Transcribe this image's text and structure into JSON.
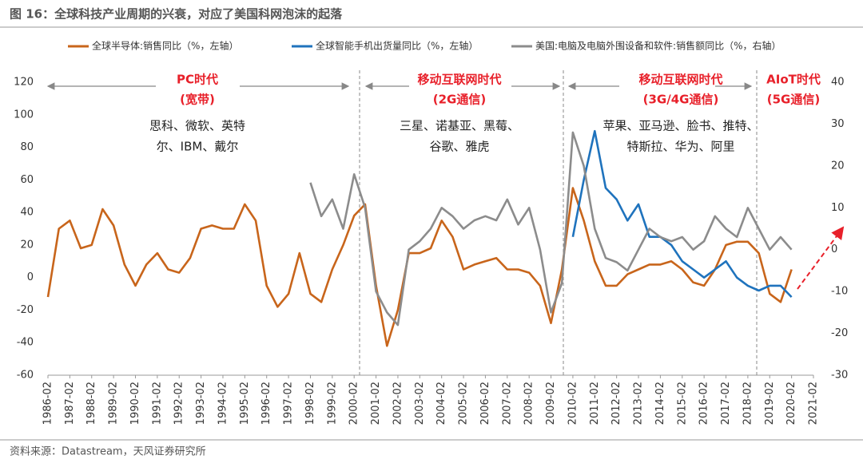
{
  "chart_data": {
    "type": "line",
    "title": "图 16：全球科技产业周期的兴衰，对应了美国科网泡沫的起落",
    "source": "资料来源：Datastream，天风证券研究所",
    "x": [
      "1986-02",
      "1986-08",
      "1987-02",
      "1987-08",
      "1988-02",
      "1988-08",
      "1989-02",
      "1989-08",
      "1990-02",
      "1990-08",
      "1991-02",
      "1991-08",
      "1992-02",
      "1992-08",
      "1993-02",
      "1993-08",
      "1994-02",
      "1994-08",
      "1995-02",
      "1995-08",
      "1996-02",
      "1996-08",
      "1997-02",
      "1997-08",
      "1998-02",
      "1998-08",
      "1999-02",
      "1999-08",
      "2000-02",
      "2000-08",
      "2001-02",
      "2001-08",
      "2002-02",
      "2002-08",
      "2003-02",
      "2003-08",
      "2004-02",
      "2004-08",
      "2005-02",
      "2005-08",
      "2006-02",
      "2006-08",
      "2007-02",
      "2007-08",
      "2008-02",
      "2008-08",
      "2009-02",
      "2009-08",
      "2010-02",
      "2010-08",
      "2011-02",
      "2011-08",
      "2012-02",
      "2012-08",
      "2013-02",
      "2013-08",
      "2014-02",
      "2014-08",
      "2015-02",
      "2015-08",
      "2016-02",
      "2016-08",
      "2017-02",
      "2017-08",
      "2018-02",
      "2018-08",
      "2019-02",
      "2019-08",
      "2020-02"
    ],
    "xlim": [
      "1986-02",
      "2021-02"
    ],
    "xticks": [
      "1986-02",
      "1987-02",
      "1988-02",
      "1989-02",
      "1990-02",
      "1991-02",
      "1992-02",
      "1993-02",
      "1994-02",
      "1995-02",
      "1996-02",
      "1997-02",
      "1998-02",
      "1999-02",
      "2000-02",
      "2001-02",
      "2002-02",
      "2003-02",
      "2004-02",
      "2005-02",
      "2006-02",
      "2007-02",
      "2008-02",
      "2009-02",
      "2010-02",
      "2011-02",
      "2012-02",
      "2013-02",
      "2014-02",
      "2015-02",
      "2016-02",
      "2017-02",
      "2018-02",
      "2019-02",
      "2020-02",
      "2021-02"
    ],
    "ylim": [
      -60,
      120
    ],
    "yticks": [
      -60,
      -40,
      -20,
      0,
      20,
      40,
      60,
      80,
      100,
      120
    ],
    "y2lim": [
      -30,
      40
    ],
    "y2ticks": [
      -30,
      -20,
      -10,
      0,
      10,
      20,
      30,
      40
    ],
    "series": [
      {
        "name": "全球半导体:销售同比（%，左轴）",
        "color": "#c8651b",
        "values": [
          -12,
          30,
          35,
          18,
          20,
          42,
          32,
          8,
          -5,
          8,
          15,
          5,
          3,
          12,
          30,
          32,
          30,
          30,
          45,
          35,
          -5,
          -18,
          -10,
          15,
          -10,
          -15,
          5,
          20,
          38,
          45,
          -5,
          -42,
          -20,
          15,
          15,
          18,
          35,
          25,
          5,
          8,
          10,
          12,
          5,
          5,
          3,
          -5,
          -28,
          5,
          55,
          35,
          10,
          -5,
          -5,
          2,
          5,
          8,
          8,
          10,
          5,
          -3,
          -5,
          5,
          20,
          22,
          22,
          15,
          -10,
          -15,
          5
        ]
      },
      {
        "name": "全球智能手机出货量同比（%，左轴）",
        "color": "#1f73bd",
        "values": [
          null,
          null,
          null,
          null,
          null,
          null,
          null,
          null,
          null,
          null,
          null,
          null,
          null,
          null,
          null,
          null,
          null,
          null,
          null,
          null,
          null,
          null,
          null,
          null,
          null,
          null,
          null,
          null,
          null,
          null,
          null,
          null,
          null,
          null,
          null,
          null,
          null,
          null,
          null,
          null,
          null,
          null,
          null,
          null,
          null,
          null,
          null,
          null,
          25,
          60,
          90,
          55,
          48,
          35,
          45,
          25,
          25,
          20,
          10,
          5,
          0,
          5,
          10,
          0,
          -5,
          -8,
          -5,
          -5,
          -12
        ]
      },
      {
        "name": "美国:电脑及电脑外围设备和软件:销售额同比（%，右轴）",
        "color": "#8c8c8c",
        "axis": "y2",
        "values": [
          null,
          null,
          null,
          null,
          null,
          null,
          null,
          null,
          null,
          null,
          null,
          null,
          null,
          null,
          null,
          null,
          null,
          null,
          null,
          null,
          null,
          null,
          null,
          null,
          16,
          8,
          12,
          5,
          18,
          10,
          -10,
          -15,
          -18,
          0,
          2,
          5,
          10,
          8,
          5,
          7,
          8,
          7,
          12,
          6,
          10,
          0,
          -15,
          -8,
          28,
          20,
          5,
          -2,
          -3,
          -5,
          0,
          5,
          3,
          2,
          3,
          0,
          2,
          8,
          5,
          3,
          10,
          5,
          0,
          3,
          0
        ]
      }
    ],
    "annotations": [
      {
        "title": "PC时代",
        "subtitle": "(宽带)",
        "lines": [
          "思科、微软、英特",
          "尔、IBM、戴尔"
        ]
      },
      {
        "title": "移动互联网时代",
        "subtitle": "(2G通信)",
        "lines": [
          "三星、诺基亚、黑莓、",
          "谷歌、雅虎"
        ]
      },
      {
        "title": "移动互联网时代",
        "subtitle": "(3G/4G通信)",
        "lines": [
          "苹果、亚马逊、脸书、推特、",
          "特斯拉、华为、阿里"
        ]
      },
      {
        "title": "AIoT时代",
        "subtitle": "(5G通信)",
        "lines": []
      }
    ]
  }
}
